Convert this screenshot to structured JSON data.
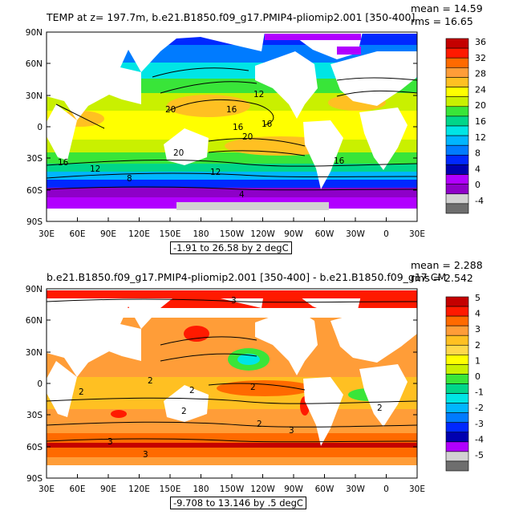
{
  "panels": [
    {
      "title": "TEMP at z=  197.7m, b.e21.B1850.f09_g17.PMIP4-pliomip2.001 [350-400]",
      "mean_label": "mean = 14.59",
      "rms_label": "rms = 16.65",
      "range_label": "-1.91 to 26.58 by 2 degC",
      "colorbar": {
        "labels": [
          "36",
          "32",
          "28",
          "24",
          "20",
          "16",
          "12",
          "8",
          "4",
          "0",
          "-4"
        ],
        "colors": [
          "#c40000",
          "#ff1a00",
          "#ff6a00",
          "#ff9d38",
          "#ffc022",
          "#ffff00",
          "#c9f000",
          "#39e539",
          "#00d68a",
          "#00e5e5",
          "#00b6ff",
          "#007bff",
          "#0028ff",
          "#0000b0",
          "#b100ff",
          "#8e00c8",
          "#d2d2d2",
          "#6e6e6e"
        ]
      },
      "map_labels": [
        "12",
        "20",
        "16",
        "16",
        "20",
        "16",
        "20",
        "12",
        "8",
        "16",
        "12",
        "4",
        "16"
      ]
    },
    {
      "title": "b.e21.B1850.f09_g17.PMIP4-pliomip2.001 [350-400] - b.e21.B1850.f09_g17.CM",
      "mean_label": "mean = 2.288",
      "rms_label": "rms = 2.542",
      "range_label": "-9.708 to 13.146 by .5 degC",
      "colorbar": {
        "labels": [
          "5",
          "4",
          "3",
          "2",
          "1",
          "0",
          "-1",
          "-2",
          "-3",
          "-4",
          "-5"
        ],
        "colors": [
          "#c40000",
          "#ff1a00",
          "#ff6a00",
          "#ff9d38",
          "#ffc022",
          "#ffd84a",
          "#ffff00",
          "#c9f000",
          "#39e539",
          "#00d68a",
          "#00e5e5",
          "#00b6ff",
          "#007bff",
          "#0028ff",
          "#0000b0",
          "#b100ff",
          "#d2d2d2",
          "#6e6e6e"
        ]
      },
      "map_labels": [
        "3",
        "2",
        "2",
        "2",
        "2",
        "2",
        "2",
        "3",
        "2",
        "3",
        "3"
      ]
    }
  ],
  "axes": {
    "lat_labels": [
      "90N",
      "60N",
      "30N",
      "0",
      "30S",
      "60S",
      "90S"
    ],
    "lon_labels": [
      "30E",
      "60E",
      "90E",
      "120E",
      "150E",
      "180",
      "150W",
      "120W",
      "90W",
      "60W",
      "30W",
      "0",
      "30E"
    ]
  }
}
